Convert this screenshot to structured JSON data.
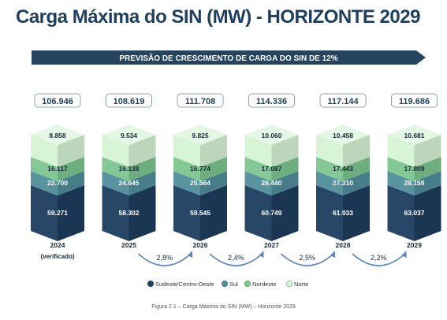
{
  "title": "Carga Máxima do SIN (MW) - HORIZONTE 2029",
  "banner": "PREVISÃO DE CRESCIMENTO DE CARGA DO SIN DE 12%",
  "caption": "Figura 2.1 – Carga Máxima do SIN (MW) – Horizonte 2029",
  "colors": {
    "title": "#1f3f5f",
    "banner": "#24445f",
    "Sudeste/Centro-Oeste": "#1d3d5e",
    "Sul": "#4f8e9a",
    "Nordeste": "#7cc58f",
    "Norte": "#d5f3d5",
    "arrow": "#5a86c4"
  },
  "chart_data": {
    "type": "bar",
    "stacked": true,
    "categories": [
      "2024",
      "2025",
      "2026",
      "2027",
      "2028",
      "2029"
    ],
    "category_sublabels": [
      "(verificado)",
      "",
      "",
      "",
      "",
      ""
    ],
    "totals": [
      "106.946",
      "108.619",
      "111.708",
      "114.336",
      "117.144",
      "119.686"
    ],
    "series": [
      {
        "name": "Sudeste/Centro-Oeste",
        "labels": [
          "59.271",
          "58.302",
          "59.545",
          "60.749",
          "61.933",
          "63.037"
        ]
      },
      {
        "name": "Sul",
        "labels": [
          "22.700",
          "24.645",
          "25.564",
          "26.440",
          "27.310",
          "28.159"
        ]
      },
      {
        "name": "Nordeste",
        "labels": [
          "16.117",
          "16.138",
          "16.774",
          "17.087",
          "17.443",
          "17.809"
        ]
      },
      {
        "name": "Norte",
        "labels": [
          "8.858",
          "9.534",
          "9.825",
          "10.060",
          "10.458",
          "10.681"
        ]
      }
    ],
    "growth": [
      {
        "from": "2025",
        "to": "2026",
        "label": "2,8%"
      },
      {
        "from": "2026",
        "to": "2027",
        "label": "2,4%"
      },
      {
        "from": "2027",
        "to": "2028",
        "label": "2,5%"
      },
      {
        "from": "2028",
        "to": "2029",
        "label": "2,2%"
      }
    ],
    "legend": [
      "Sudeste/Centro-Oeste",
      "Sul",
      "Nordeste",
      "Norte"
    ],
    "legend_position": "bottom"
  }
}
